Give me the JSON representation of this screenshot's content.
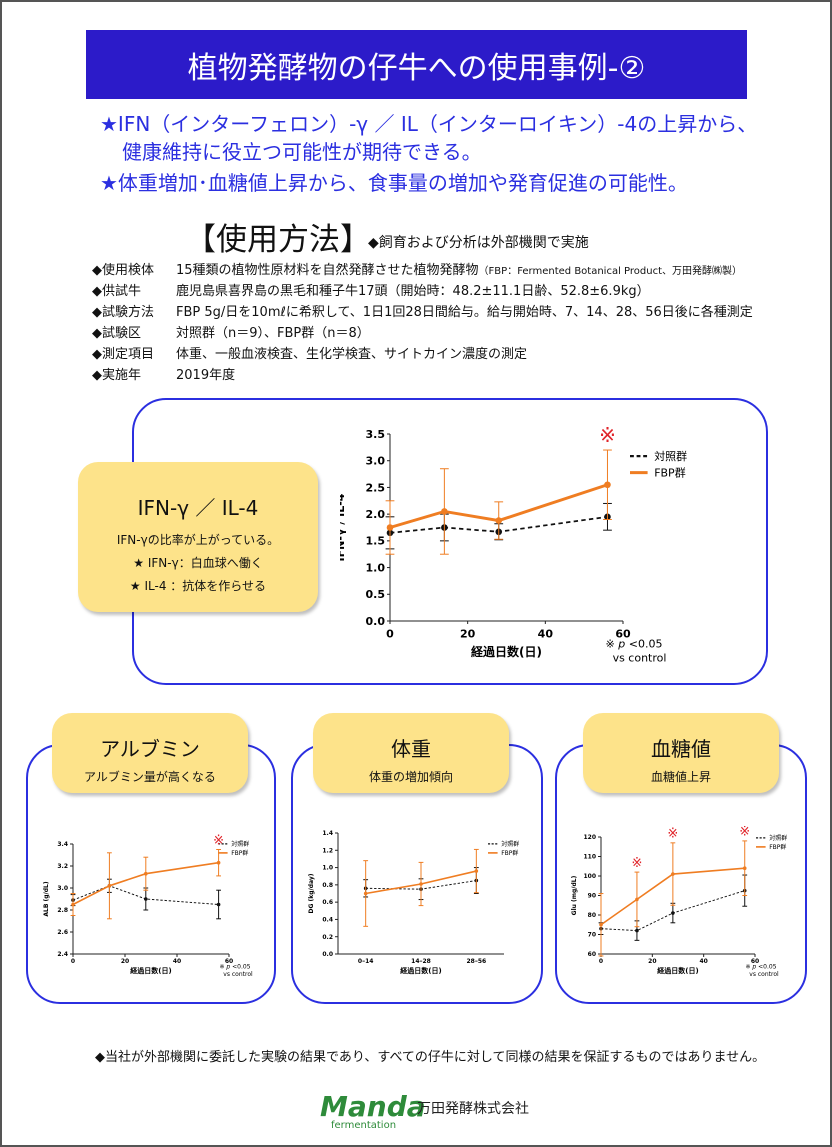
{
  "title": "植物発酵物の仔牛への使用事例-②",
  "lead": [
    "★IFN（インターフェロン）-γ ／ IL（インターロイキン）-4の上昇から、",
    "健康維持に役立つ可能性が期待できる。",
    "★体重増加･血糖値上昇から、食事量の増加や発育促進の可能性。"
  ],
  "method": {
    "heading": "【使用方法】",
    "note": "◆飼育および分析は外部機関で実施",
    "items": [
      {
        "key": "◆使用検体",
        "value": "15種類の植物性原材料を自然発酵させた植物発酵物",
        "small": "（FBP：Fermented Botanical Product、万田発酵㈱製）"
      },
      {
        "key": "◆供試牛",
        "value": "鹿児島県喜界島の黒毛和種子牛17頭（開始時：48.2±11.1日齢、52.8±6.9kg）",
        "small": ""
      },
      {
        "key": "◆試験方法",
        "value": "FBP 5g/日を10mℓに希釈して、1日1回28日間給与。給与開始時、7、14、28、56日後に各種測定",
        "small": ""
      },
      {
        "key": "◆試験区",
        "value": "対照群（n＝9）、FBP群（n＝8）",
        "small": ""
      },
      {
        "key": "◆測定項目",
        "value": "体重、一般血液検査、生化学検査、サイトカイン濃度の測定",
        "small": ""
      },
      {
        "key": "◆実施年",
        "value": "2019年度",
        "small": ""
      }
    ]
  },
  "ifn_box": {
    "heading": "IFN-γ ／ IL-4",
    "line1": "IFN-γの比率が上がっている。",
    "line2": "★ IFN-γ：白血球へ働く",
    "line3": "★ IL-4 ：抗体を作らせる"
  },
  "small_boxes": [
    {
      "heading": "アルブミン",
      "sub": "アルブミン量が高くなる"
    },
    {
      "heading": "体重",
      "sub": "体重の増加傾向"
    },
    {
      "heading": "血糖値",
      "sub": "血糖値上昇"
    }
  ],
  "sig_note": {
    "mark": "※",
    "p": "p",
    "rest": "<0.05",
    "line2": "vs control"
  },
  "chart_data": [
    {
      "type": "line",
      "title": "",
      "xlabel": "経過日数(日)",
      "ylabel": "IFN-γ / IL-4",
      "xlim": [
        0,
        60
      ],
      "ylim": [
        0,
        3.5
      ],
      "xticks": [
        "0",
        "20",
        "40",
        "60"
      ],
      "yticks": [
        "0.0",
        "0.5",
        "1.0",
        "1.5",
        "2.0",
        "2.5",
        "3.0",
        "3.5"
      ],
      "legend_position": "top-right",
      "series": [
        {
          "name": "対照群",
          "color": "#111111",
          "dashed": true,
          "x": [
            0,
            14,
            28,
            56
          ],
          "y": [
            1.65,
            1.75,
            1.67,
            1.95
          ],
          "err": [
            0.3,
            0.25,
            0.15,
            0.25
          ]
        },
        {
          "name": "FBP群",
          "color": "#ef7d22",
          "dashed": false,
          "x": [
            0,
            14,
            28,
            56
          ],
          "y": [
            1.75,
            2.05,
            1.88,
            2.55
          ],
          "err": [
            0.5,
            0.8,
            0.35,
            0.65
          ]
        }
      ],
      "significance": [
        {
          "x": 56,
          "label": "※"
        }
      ]
    },
    {
      "type": "line",
      "title": "",
      "xlabel": "経過日数(日)",
      "ylabel": "ALB (g/dL)",
      "xlim": [
        0,
        60
      ],
      "ylim": [
        2.4,
        3.4
      ],
      "xticks": [
        "0",
        "20",
        "40",
        "60"
      ],
      "yticks": [
        "2.4",
        "2.6",
        "2.8",
        "3.0",
        "3.2",
        "3.4"
      ],
      "legend_position": "top-right",
      "series": [
        {
          "name": "対照群",
          "color": "#111111",
          "dashed": true,
          "x": [
            0,
            14,
            28,
            56
          ],
          "y": [
            2.89,
            3.02,
            2.9,
            2.85
          ],
          "err": [
            0.05,
            0.06,
            0.1,
            0.13
          ]
        },
        {
          "name": "FBP群",
          "color": "#ef7d22",
          "dashed": false,
          "x": [
            0,
            14,
            28,
            56
          ],
          "y": [
            2.85,
            3.02,
            3.13,
            3.23
          ],
          "err": [
            0.1,
            0.3,
            0.15,
            0.12
          ]
        }
      ],
      "significance": [
        {
          "x": 56,
          "label": "※"
        }
      ]
    },
    {
      "type": "line",
      "title": "",
      "xlabel": "経過日数(日)",
      "ylabel": "DG (kg/day)",
      "ylim": [
        0,
        1.4
      ],
      "categories": [
        "0–14",
        "14–28",
        "28–56"
      ],
      "yticks": [
        "0.0",
        "0.2",
        "0.4",
        "0.6",
        "0.8",
        "1.0",
        "1.2",
        "1.4"
      ],
      "legend_position": "top-right",
      "series": [
        {
          "name": "対照群",
          "color": "#111111",
          "dashed": true,
          "values": [
            0.76,
            0.75,
            0.85
          ],
          "err": [
            0.1,
            0.12,
            0.15
          ]
        },
        {
          "name": "FBP群",
          "color": "#ef7d22",
          "dashed": false,
          "values": [
            0.7,
            0.81,
            0.96
          ],
          "err": [
            0.38,
            0.25,
            0.25
          ]
        }
      ],
      "significance": []
    },
    {
      "type": "line",
      "title": "",
      "xlabel": "経過日数(日)",
      "ylabel": "Glu (mg/dL)",
      "xlim": [
        0,
        60
      ],
      "ylim": [
        60,
        120
      ],
      "xticks": [
        "0",
        "20",
        "40",
        "60"
      ],
      "yticks": [
        "60",
        "70",
        "80",
        "90",
        "100",
        "110",
        "120"
      ],
      "legend_position": "top-right",
      "series": [
        {
          "name": "対照群",
          "color": "#111111",
          "dashed": true,
          "x": [
            0,
            14,
            28,
            56
          ],
          "y": [
            73,
            72,
            81,
            92.5
          ],
          "err": [
            3,
            5,
            5,
            8
          ]
        },
        {
          "name": "FBP群",
          "color": "#ef7d22",
          "dashed": false,
          "x": [
            0,
            14,
            28,
            56
          ],
          "y": [
            75,
            88,
            101,
            104
          ],
          "err": [
            16,
            14,
            16,
            14
          ]
        }
      ],
      "significance": [
        {
          "x": 14,
          "label": "※"
        },
        {
          "x": 28,
          "label": "※"
        },
        {
          "x": 56,
          "label": "※"
        }
      ]
    }
  ],
  "footer": "◆当社が外部機関に委託した実験の結果であり、すべての仔牛に対して同様の結果を保証するものではありません。",
  "company": {
    "logo_text": "Manda",
    "logo_sub": "fermentation",
    "name": "万田発酵株式会社"
  },
  "colors": {
    "title_bg": "#2c1bc9",
    "accent_blue": "#2b2fe0",
    "fbp_orange": "#ef7d22",
    "box_yellow": "#fde38a",
    "logo_green": "#2e8b3a",
    "sig_red": "#e0242a"
  }
}
